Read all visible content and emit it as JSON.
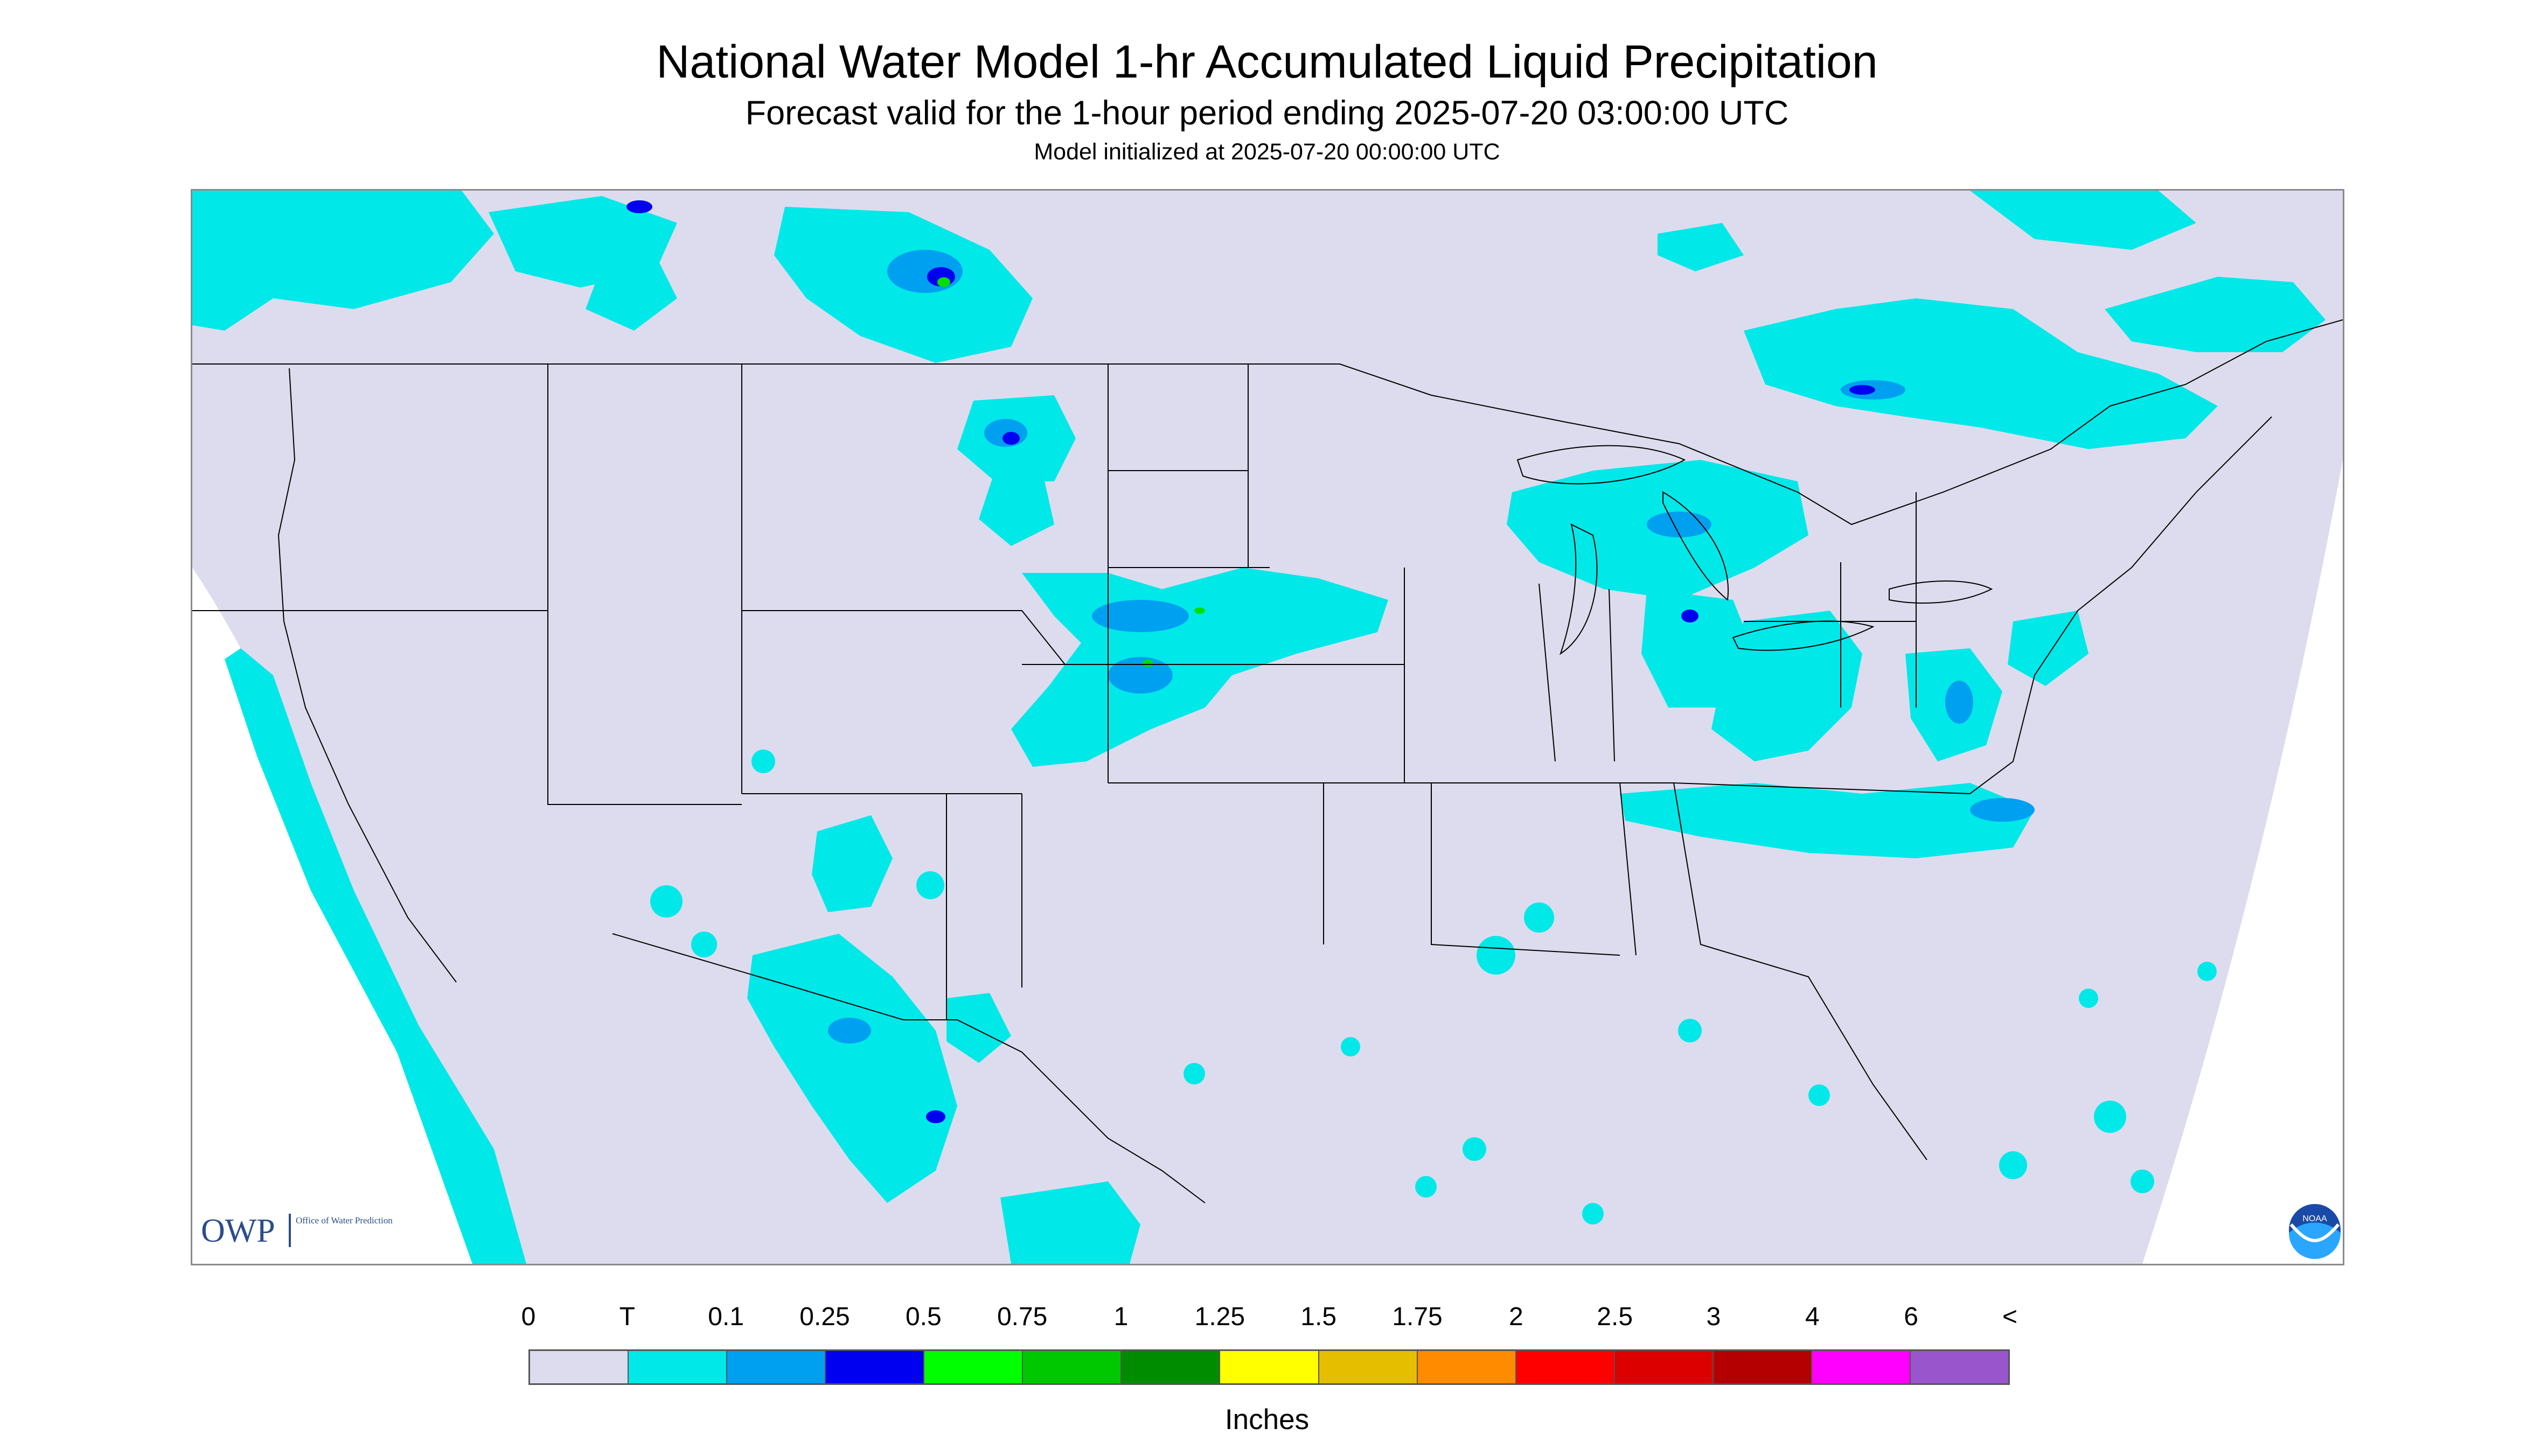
{
  "header": {
    "title": "National Water Model 1-hr Accumulated Liquid Precipitation",
    "subtitle": "Forecast valid for the 1-hour period ending 2025-07-20 03:00:00 UTC",
    "init_line": "Model initialized at 2025-07-20 00:00:00 UTC"
  },
  "map": {
    "region": "CONUS",
    "background_color": "#dcdcee",
    "light_precip_color": "#00e8e8",
    "moderate_precip_color": "#00a0f0",
    "heavy_precip_color": "#0000f0",
    "peak_precip_color": "#00e000",
    "boundary_color": "#000000",
    "logos": {
      "owp": {
        "mark": "OWP",
        "caption": "Office of Water Prediction"
      },
      "noaa": {
        "mark": "NOAA"
      }
    }
  },
  "legend": {
    "labels": [
      "0",
      "T",
      "0.1",
      "0.25",
      "0.5",
      "0.75",
      "1",
      "1.25",
      "1.5",
      "1.75",
      "2",
      "2.5",
      "3",
      "4",
      "6",
      "<"
    ],
    "colors": [
      "#dcdcee",
      "#00e8e8",
      "#00a0f0",
      "#0000f0",
      "#00ff00",
      "#00c800",
      "#008c00",
      "#ffff00",
      "#e6be00",
      "#ff8c00",
      "#ff0000",
      "#dc0000",
      "#b40000",
      "#ff00ff",
      "#9955cc"
    ],
    "units": "Inches"
  }
}
